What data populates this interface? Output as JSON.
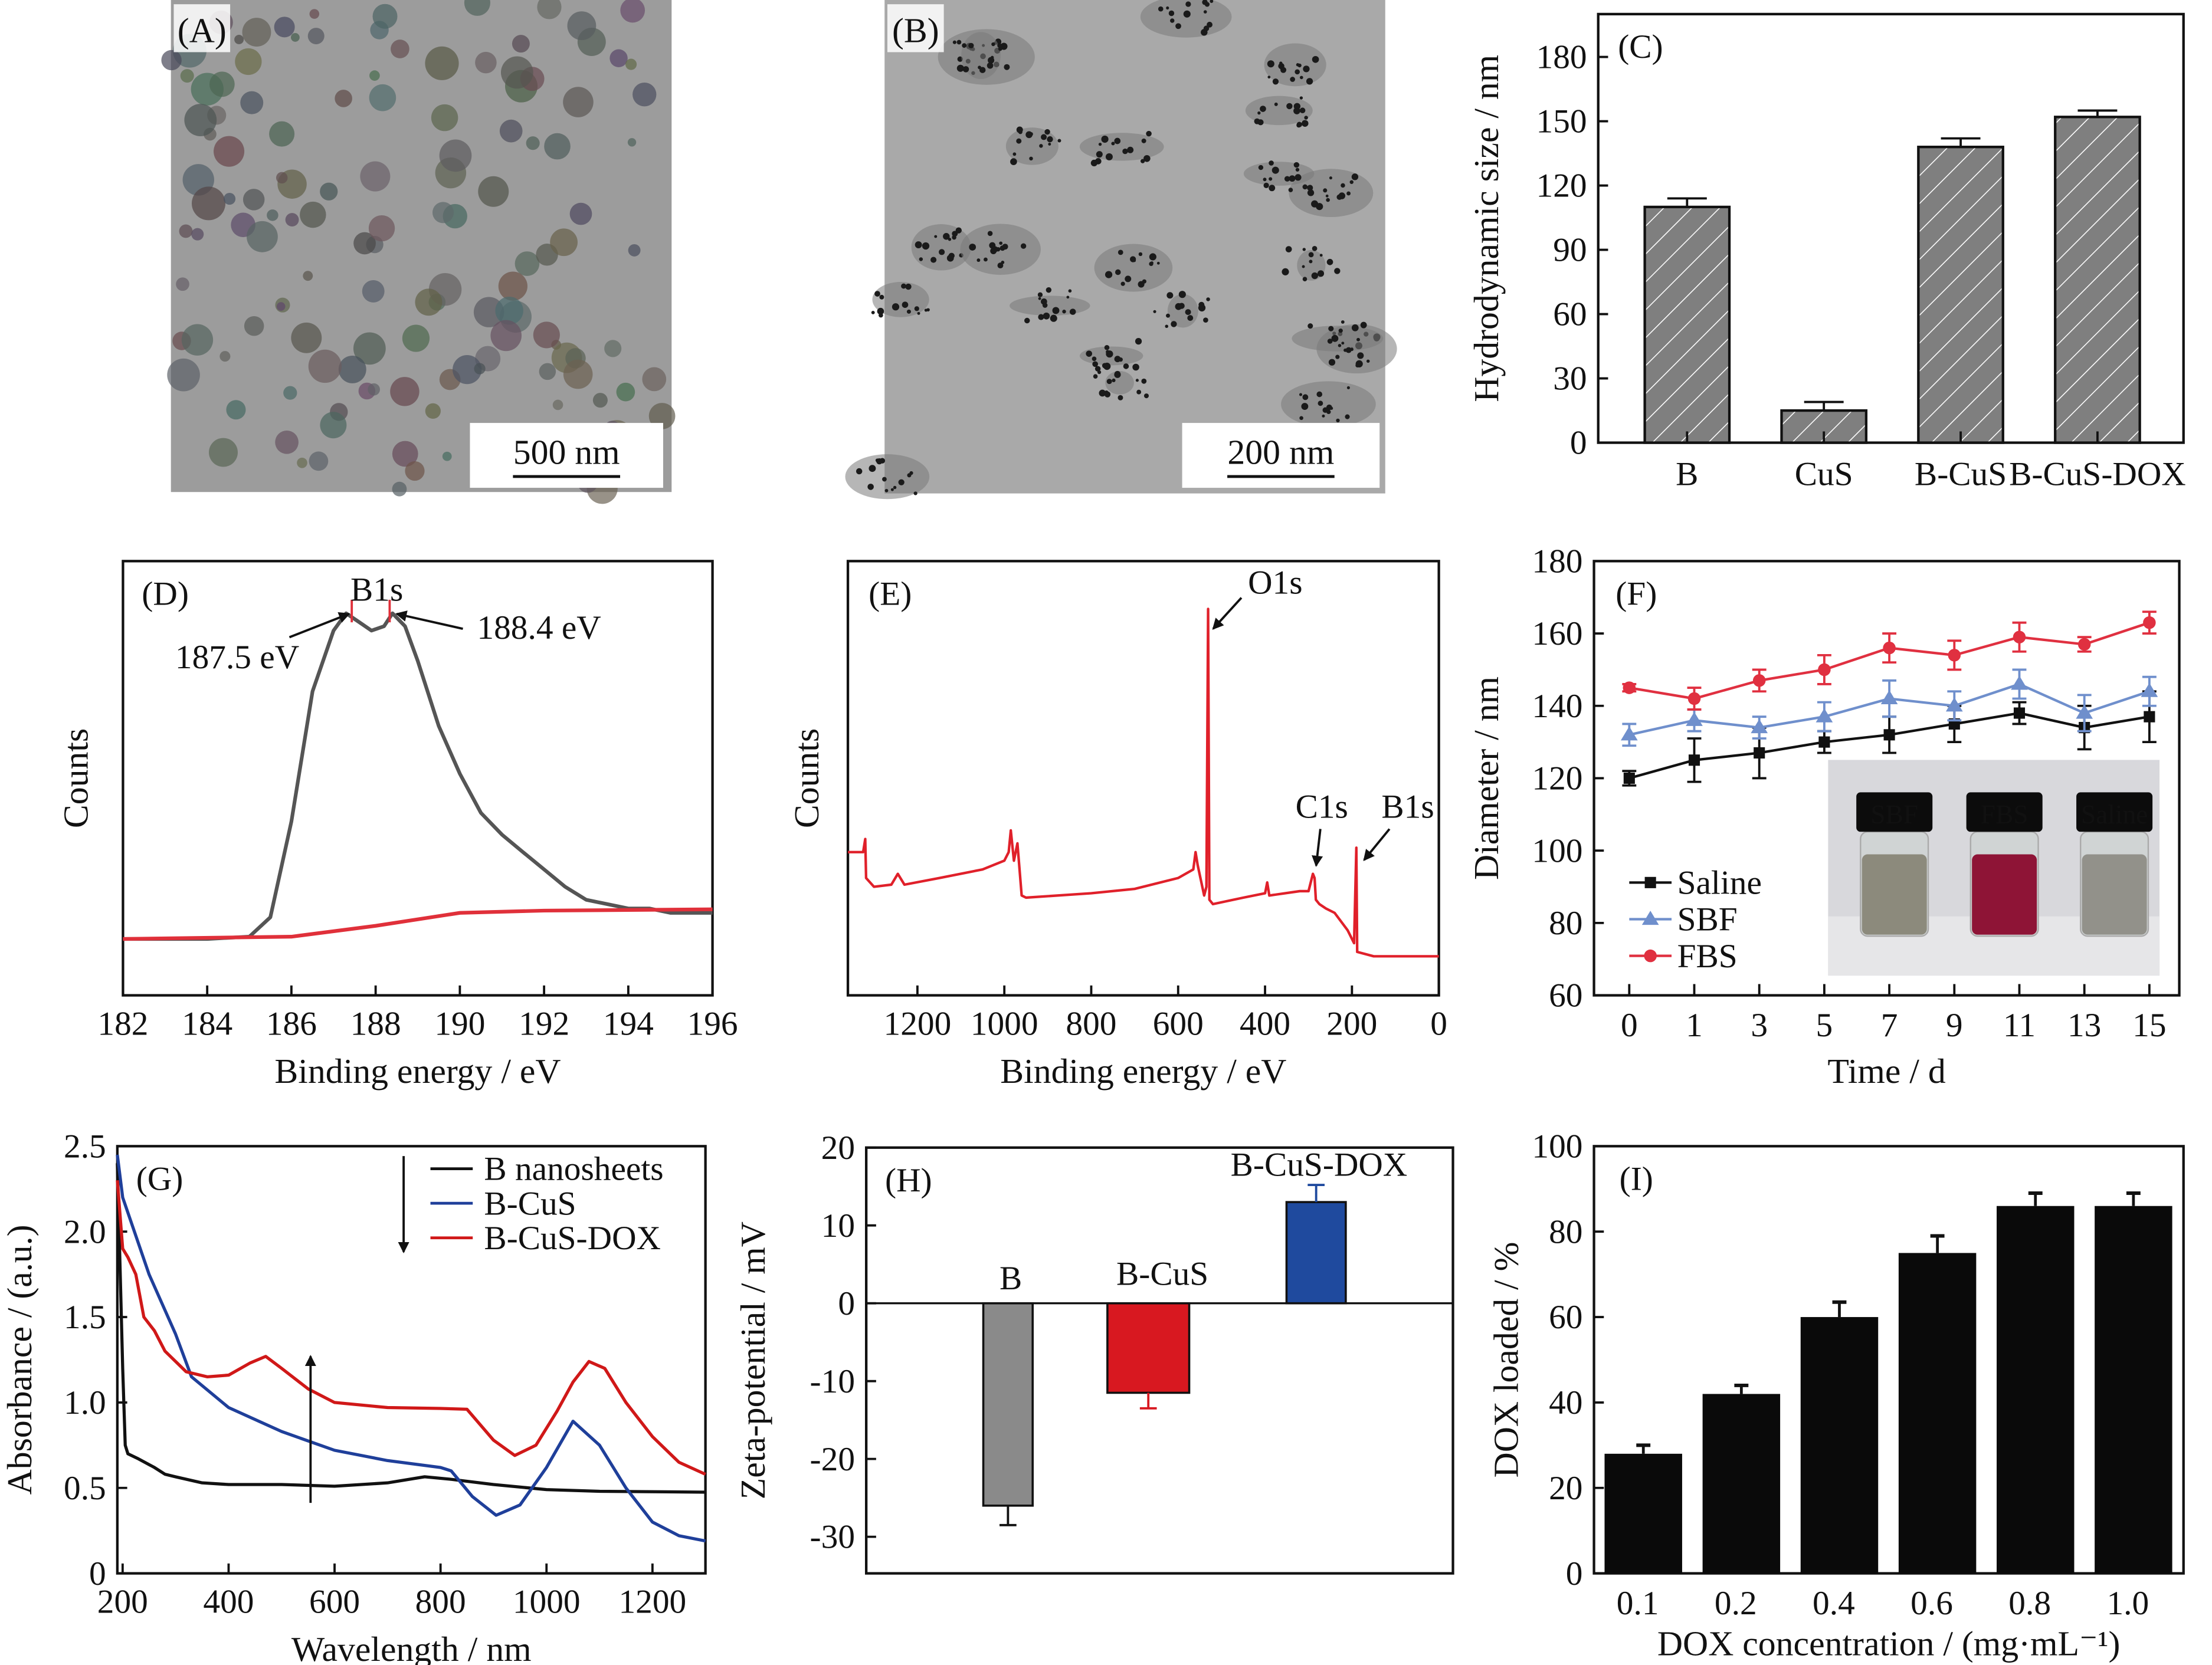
{
  "panels": {
    "A": {
      "label": "(A)",
      "scale_bar": "500 nm",
      "background": "#9c9c9c"
    },
    "B": {
      "label": "(B)",
      "scale_bar": "200 nm",
      "background": "#a9a9a9"
    }
  },
  "chart_data": [
    {
      "panel": "(C)",
      "type": "bar",
      "ylabel": "Hydrodynamic size / nm",
      "xlabel": "",
      "ylim": [
        0,
        200
      ],
      "yticks": [
        "0",
        "30",
        "60",
        "90",
        "120",
        "150",
        "180"
      ],
      "categories": [
        "B",
        "CuS",
        "B-CuS",
        "B-CuS-DOX"
      ],
      "values": [
        110,
        15,
        138,
        152
      ],
      "errors": [
        4,
        4,
        4,
        3
      ],
      "fill": "#7f7f7f",
      "pattern": "diagonal-hatch"
    },
    {
      "panel": "(D)",
      "type": "line",
      "xlabel": "Binding energy / eV",
      "ylabel": "Counts",
      "xlim": [
        182,
        196
      ],
      "ylim": [
        0,
        1
      ],
      "xticks": [
        "182",
        "184",
        "186",
        "188",
        "190",
        "192",
        "194",
        "196"
      ],
      "annotations": {
        "peak": "B1s",
        "left": "187.5 eV",
        "right": "188.4 eV"
      },
      "annotation_energies": [
        187.5,
        188.4
      ],
      "series": [
        {
          "color": "#555555",
          "points": [
            [
              182,
              0.13
            ],
            [
              184,
              0.13
            ],
            [
              185,
              0.135
            ],
            [
              185.5,
              0.18
            ],
            [
              186,
              0.4
            ],
            [
              186.5,
              0.7
            ],
            [
              187,
              0.84
            ],
            [
              187.3,
              0.88
            ],
            [
              187.6,
              0.86
            ],
            [
              187.9,
              0.84
            ],
            [
              188.2,
              0.85
            ],
            [
              188.4,
              0.88
            ],
            [
              188.7,
              0.85
            ],
            [
              189,
              0.77
            ],
            [
              189.5,
              0.62
            ],
            [
              190,
              0.51
            ],
            [
              190.5,
              0.42
            ],
            [
              191,
              0.37
            ],
            [
              191.5,
              0.33
            ],
            [
              192,
              0.29
            ],
            [
              192.5,
              0.25
            ],
            [
              193,
              0.22
            ],
            [
              193.5,
              0.21
            ],
            [
              194,
              0.2
            ],
            [
              194.5,
              0.2
            ],
            [
              195,
              0.19
            ],
            [
              196,
              0.19
            ]
          ]
        },
        {
          "color": "#e0303a",
          "points": [
            [
              182,
              0.13
            ],
            [
              186,
              0.135
            ],
            [
              188,
              0.16
            ],
            [
              190,
              0.19
            ],
            [
              192,
              0.195
            ],
            [
              196,
              0.198
            ]
          ]
        }
      ]
    },
    {
      "panel": "(E)",
      "type": "line",
      "xlabel": "Binding energy / eV",
      "ylabel": "Counts",
      "xlim": [
        1360,
        0
      ],
      "ylim": [
        0,
        1
      ],
      "x_reversed": true,
      "xticks": [
        "1200",
        "1000",
        "800",
        "600",
        "400",
        "200",
        "0"
      ],
      "annotations": {
        "o1s": "O1s",
        "c1s": "C1s",
        "b1s": "B1s"
      },
      "series": [
        {
          "color": "#e0202a",
          "points": [
            [
              1360,
              0.33
            ],
            [
              1325,
              0.33
            ],
            [
              1320,
              0.36
            ],
            [
              1318,
              0.27
            ],
            [
              1300,
              0.25
            ],
            [
              1260,
              0.255
            ],
            [
              1245,
              0.28
            ],
            [
              1230,
              0.255
            ],
            [
              1150,
              0.27
            ],
            [
              1050,
              0.29
            ],
            [
              1000,
              0.31
            ],
            [
              990,
              0.33
            ],
            [
              985,
              0.38
            ],
            [
              978,
              0.31
            ],
            [
              970,
              0.35
            ],
            [
              960,
              0.23
            ],
            [
              950,
              0.225
            ],
            [
              800,
              0.235
            ],
            [
              700,
              0.245
            ],
            [
              600,
              0.27
            ],
            [
              565,
              0.29
            ],
            [
              560,
              0.33
            ],
            [
              555,
              0.3
            ],
            [
              540,
              0.23
            ],
            [
              535,
              0.25
            ],
            [
              531,
              0.89
            ],
            [
              528,
              0.22
            ],
            [
              520,
              0.21
            ],
            [
              450,
              0.225
            ],
            [
              400,
              0.235
            ],
            [
              395,
              0.26
            ],
            [
              390,
              0.23
            ],
            [
              320,
              0.24
            ],
            [
              300,
              0.24
            ],
            [
              290,
              0.28
            ],
            [
              286,
              0.27
            ],
            [
              283,
              0.22
            ],
            [
              275,
              0.21
            ],
            [
              260,
              0.2
            ],
            [
              240,
              0.19
            ],
            [
              210,
              0.15
            ],
            [
              195,
              0.12
            ],
            [
              190,
              0.34
            ],
            [
              188,
              0.1
            ],
            [
              150,
              0.09
            ],
            [
              0,
              0.09
            ]
          ]
        }
      ]
    },
    {
      "panel": "(F)",
      "type": "line",
      "xlabel": "Time / d",
      "ylabel": "Diameter / nm",
      "ylim": [
        60,
        180
      ],
      "yticks": [
        "60",
        "80",
        "100",
        "120",
        "140",
        "160",
        "180"
      ],
      "categories": [
        "0",
        "1",
        "3",
        "5",
        "7",
        "9",
        "11",
        "13",
        "15"
      ],
      "legend": "bottom-left",
      "series": [
        {
          "name": "Saline",
          "color": "#111111",
          "marker": "square",
          "values": [
            120,
            125,
            127,
            130,
            132,
            135,
            138,
            134,
            137
          ],
          "errors": [
            2,
            6,
            7,
            3,
            5,
            5,
            3,
            6,
            7
          ]
        },
        {
          "name": "SBF",
          "color": "#6f8fcc",
          "marker": "triangle",
          "values": [
            132,
            136,
            134,
            137,
            142,
            140,
            146,
            138,
            144
          ],
          "errors": [
            3,
            3,
            3,
            4,
            5,
            4,
            4,
            5,
            4
          ]
        },
        {
          "name": "FBS",
          "color": "#e03040",
          "marker": "circle",
          "values": [
            145,
            142,
            147,
            150,
            156,
            154,
            159,
            157,
            163
          ],
          "errors": [
            1,
            3,
            3,
            4,
            4,
            4,
            4,
            2,
            3
          ]
        }
      ],
      "inset_photo": {
        "vials": [
          "SBF",
          "FBS",
          "Saline"
        ],
        "liquid_colors": [
          "#8c8a7c",
          "#8e1436",
          "#92918a"
        ]
      }
    },
    {
      "panel": "(G)",
      "type": "line",
      "xlabel": "Wavelength / nm",
      "ylabel": "Absorbance / (a.u.)",
      "xlim": [
        190,
        1300
      ],
      "ylim": [
        0,
        2.5
      ],
      "xticks": [
        "200",
        "400",
        "600",
        "800",
        "1000",
        "1200"
      ],
      "yticks": [
        "0",
        "0.5",
        "1.0",
        "1.5",
        "2.0",
        "2.5"
      ],
      "legend": "top-right",
      "series": [
        {
          "name": "B nanosheets",
          "color": "#111111",
          "points": [
            [
              190,
              2.4
            ],
            [
              195,
              1.8
            ],
            [
              200,
              1.2
            ],
            [
              205,
              0.75
            ],
            [
              210,
              0.7
            ],
            [
              230,
              0.67
            ],
            [
              260,
              0.62
            ],
            [
              280,
              0.58
            ],
            [
              300,
              0.565
            ],
            [
              350,
              0.53
            ],
            [
              400,
              0.52
            ],
            [
              500,
              0.52
            ],
            [
              600,
              0.51
            ],
            [
              700,
              0.53
            ],
            [
              770,
              0.565
            ],
            [
              820,
              0.55
            ],
            [
              900,
              0.52
            ],
            [
              1000,
              0.49
            ],
            [
              1100,
              0.48
            ],
            [
              1300,
              0.475
            ]
          ]
        },
        {
          "name": "B-CuS",
          "color": "#1f3f9a",
          "points": [
            [
              190,
              2.45
            ],
            [
              200,
              2.2
            ],
            [
              250,
              1.75
            ],
            [
              300,
              1.4
            ],
            [
              330,
              1.15
            ],
            [
              400,
              0.97
            ],
            [
              500,
              0.83
            ],
            [
              600,
              0.72
            ],
            [
              700,
              0.66
            ],
            [
              800,
              0.62
            ],
            [
              820,
              0.6
            ],
            [
              860,
              0.45
            ],
            [
              905,
              0.34
            ],
            [
              950,
              0.4
            ],
            [
              1000,
              0.62
            ],
            [
              1050,
              0.89
            ],
            [
              1100,
              0.75
            ],
            [
              1150,
              0.5
            ],
            [
              1200,
              0.3
            ],
            [
              1250,
              0.22
            ],
            [
              1300,
              0.19
            ]
          ]
        },
        {
          "name": "B-CuS-DOX",
          "color": "#d01818",
          "points": [
            [
              190,
              2.3
            ],
            [
              200,
              1.9
            ],
            [
              210,
              1.85
            ],
            [
              225,
              1.75
            ],
            [
              240,
              1.5
            ],
            [
              260,
              1.42
            ],
            [
              280,
              1.3
            ],
            [
              320,
              1.18
            ],
            [
              360,
              1.15
            ],
            [
              400,
              1.16
            ],
            [
              440,
              1.23
            ],
            [
              470,
              1.27
            ],
            [
              500,
              1.2
            ],
            [
              550,
              1.08
            ],
            [
              600,
              1.0
            ],
            [
              700,
              0.97
            ],
            [
              800,
              0.965
            ],
            [
              850,
              0.96
            ],
            [
              900,
              0.78
            ],
            [
              940,
              0.69
            ],
            [
              980,
              0.75
            ],
            [
              1020,
              0.95
            ],
            [
              1050,
              1.12
            ],
            [
              1080,
              1.24
            ],
            [
              1110,
              1.2
            ],
            [
              1150,
              1.0
            ],
            [
              1200,
              0.8
            ],
            [
              1250,
              0.65
            ],
            [
              1300,
              0.58
            ]
          ]
        }
      ]
    },
    {
      "panel": "(H)",
      "type": "bar",
      "ylabel": "Zeta-potential / mV",
      "xlabel": "",
      "ylim": [
        -34.7,
        20
      ],
      "yticks": [
        "-30",
        "-20",
        "-10",
        "0",
        "10",
        "20"
      ],
      "categories": [
        "B",
        "B-CuS",
        "B-CuS-DOX"
      ],
      "values": [
        -26,
        -11.5,
        13
      ],
      "errors": [
        2.5,
        2,
        2.2
      ],
      "colors": [
        "#8a8a8a",
        "#d81820",
        "#1f4a9e"
      ]
    },
    {
      "panel": "(I)",
      "type": "bar",
      "ylabel": "DOX loaded / %",
      "xlabel": "DOX concentration / (mg·mL⁻¹)",
      "ylim": [
        0,
        100
      ],
      "yticks": [
        "0",
        "20",
        "40",
        "60",
        "80",
        "100"
      ],
      "categories": [
        "0.1",
        "0.2",
        "0.4",
        "0.6",
        "0.8",
        "1.0"
      ],
      "values": [
        28,
        42,
        60,
        75,
        86,
        86
      ],
      "errors": [
        2,
        2,
        3.5,
        4,
        3,
        3
      ],
      "fill": "#0a0a0a"
    }
  ]
}
